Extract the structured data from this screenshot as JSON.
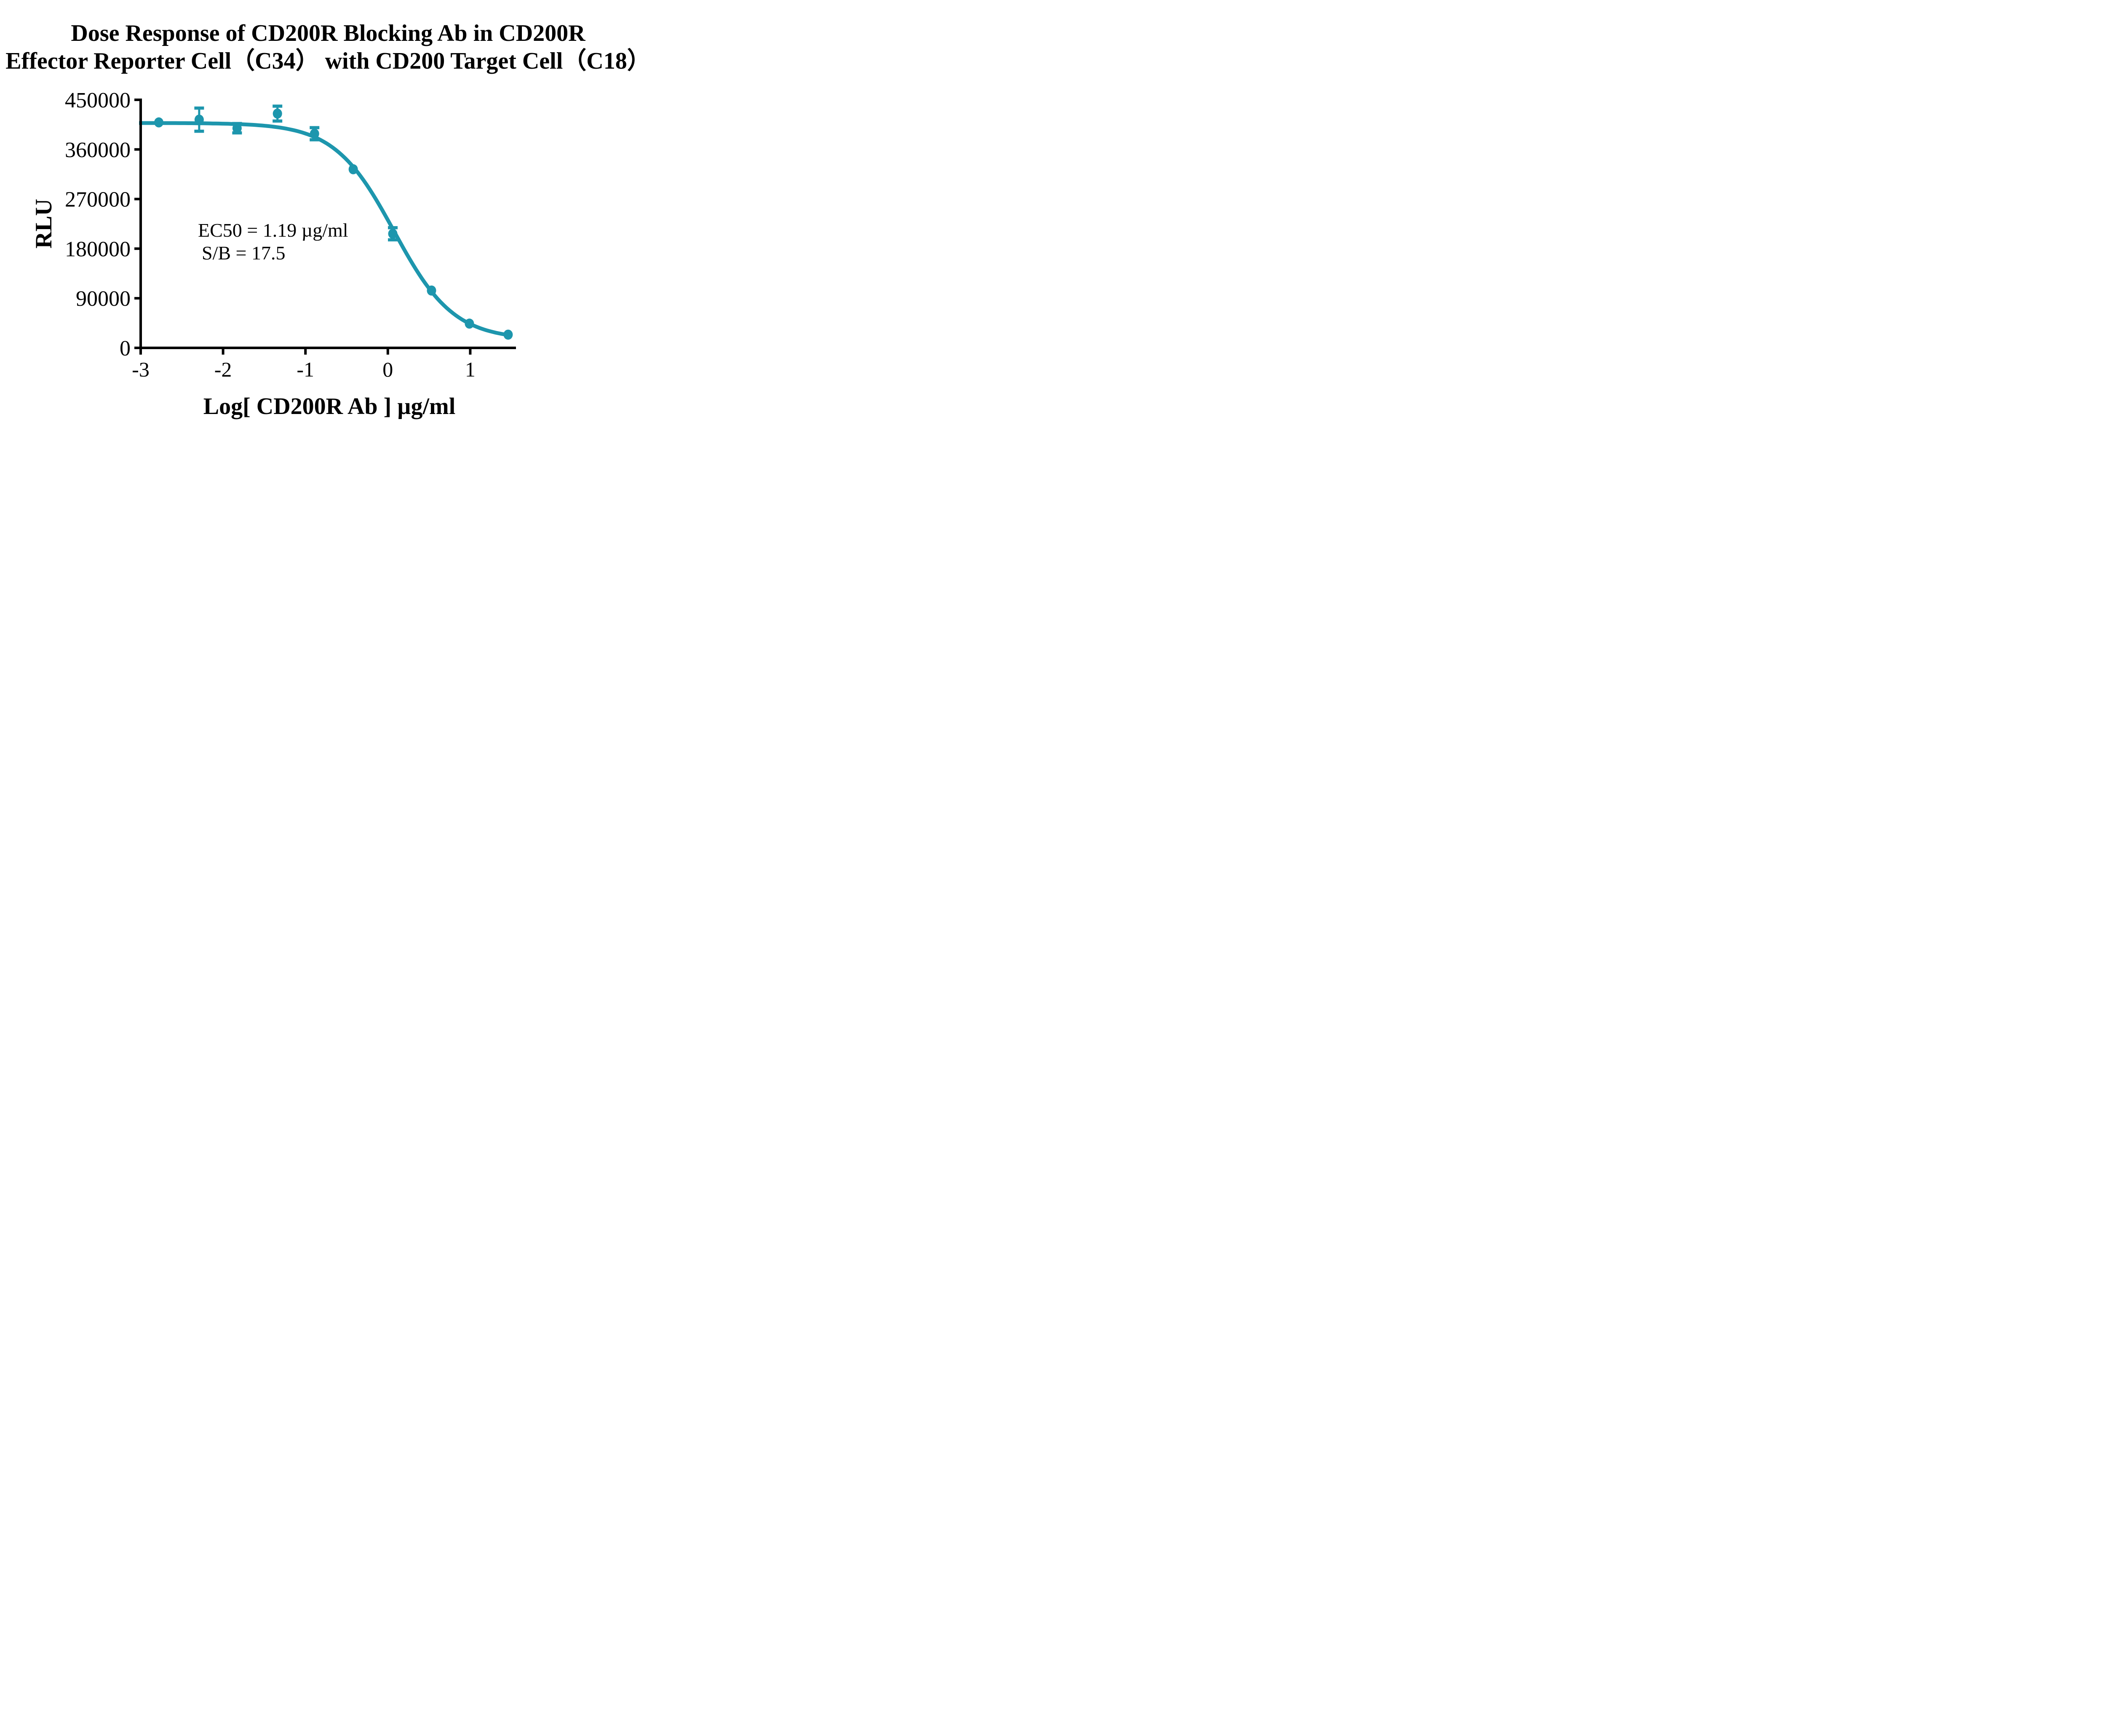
{
  "title": {
    "line1": "Dose Response of CD200R Blocking Ab in CD200R",
    "line2": "Effector Reporter Cell（C34） with CD200 Target Cell（C18）"
  },
  "axes": {
    "y_label": "RLU",
    "x_label": "Log[ CD200R Ab ] µg/ml"
  },
  "annotation": {
    "ec50": "EC50 = 1.19 µg/ml",
    "sb": "S/B = 17.5"
  },
  "colors": {
    "series": "#1d96ad",
    "axis": "#000000",
    "background": "#ffffff"
  },
  "chart_data": {
    "type": "scatter",
    "title": "Dose Response of CD200R Blocking Ab in CD200R Effector Reporter Cell（C34） with CD200 Target Cell（C18）",
    "xlabel": "Log[ CD200R Ab ] µg/ml",
    "ylabel": "RLU",
    "xlim": [
      -3,
      1.6
    ],
    "ylim": [
      0,
      450000
    ],
    "grid": false,
    "legend_position": "none",
    "x_ticks": [
      -3,
      -2,
      -1,
      0,
      1
    ],
    "x_tick_labels": [
      "-3",
      "-2",
      "-1",
      "0",
      "1"
    ],
    "y_ticks": [
      450000,
      360000,
      270000,
      180000,
      90000,
      0
    ],
    "y_tick_labels": [
      "450000",
      "360000",
      "270000",
      "180000",
      "90000",
      "0"
    ],
    "ec50_ug_ml": 1.19,
    "signal_to_background": 17.5,
    "series": [
      {
        "name": "CD200R Ab",
        "color": "#1d96ad",
        "points": [
          {
            "x": -2.78,
            "y": 409000,
            "err": 0
          },
          {
            "x": -2.29,
            "y": 414000,
            "err": 21000
          },
          {
            "x": -1.83,
            "y": 398500,
            "err": 8500
          },
          {
            "x": -1.34,
            "y": 425000,
            "err": 13500
          },
          {
            "x": -0.89,
            "y": 388500,
            "err": 11000
          },
          {
            "x": -0.42,
            "y": 324000,
            "err": 0
          },
          {
            "x": 0.06,
            "y": 207000,
            "err": 11000
          },
          {
            "x": 0.53,
            "y": 104000,
            "err": 0
          },
          {
            "x": 0.99,
            "y": 44000,
            "err": 0
          },
          {
            "x": 1.46,
            "y": 24000,
            "err": 0
          }
        ]
      }
    ],
    "fit_curve": {
      "model": "4PL",
      "top": 408000,
      "bottom": 15000,
      "log_ec50": 0.0755,
      "hill": 1.2,
      "x_start": -3.02,
      "x_end": 1.46
    }
  }
}
